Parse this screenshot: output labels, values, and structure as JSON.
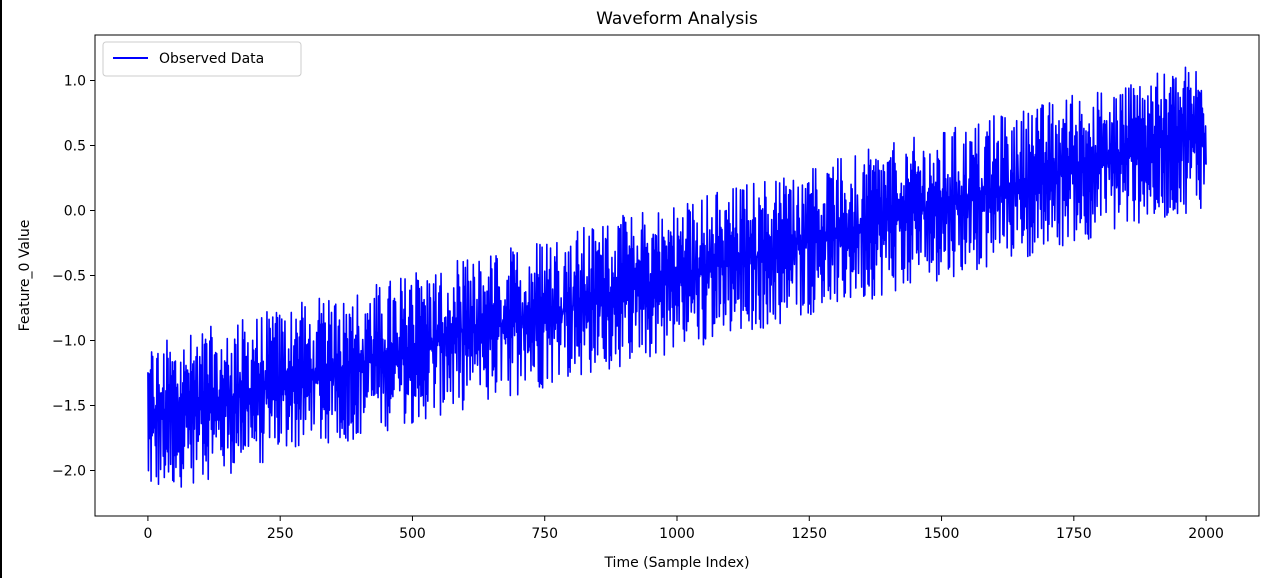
{
  "chart_data": {
    "type": "line",
    "title": "Waveform Analysis",
    "xlabel": "Time (Sample Index)",
    "ylabel": "Feature_0 Value",
    "xlim": [
      -100,
      2100
    ],
    "ylim": [
      -2.35,
      1.35
    ],
    "xticks": [
      0,
      250,
      500,
      750,
      1000,
      1250,
      1500,
      1750,
      2000
    ],
    "xtick_labels": [
      "0",
      "250",
      "500",
      "750",
      "1000",
      "1250",
      "1500",
      "1750",
      "2000"
    ],
    "yticks": [
      1.0,
      0.5,
      0.0,
      -0.5,
      -1.0,
      -1.5,
      -2.0
    ],
    "ytick_labels": [
      "1.0",
      "0.5",
      "0.0",
      "−0.5",
      "−1.0",
      "−1.5",
      "−2.0"
    ],
    "grid": false,
    "legend": {
      "position": "top-left",
      "entries": [
        "Observed Data"
      ]
    },
    "series": [
      {
        "name": "Observed Data",
        "color": "#0000ff",
        "trend": {
          "x": [
            0,
            2000
          ],
          "y": [
            -1.62,
            0.62
          ]
        },
        "band": {
          "upper": [
            [
              0,
              -1.02
            ],
            [
              2000,
              1.17
            ]
          ],
          "lower": [
            [
              0,
              -2.2
            ],
            [
              2000,
              0.02
            ]
          ]
        }
      }
    ]
  }
}
